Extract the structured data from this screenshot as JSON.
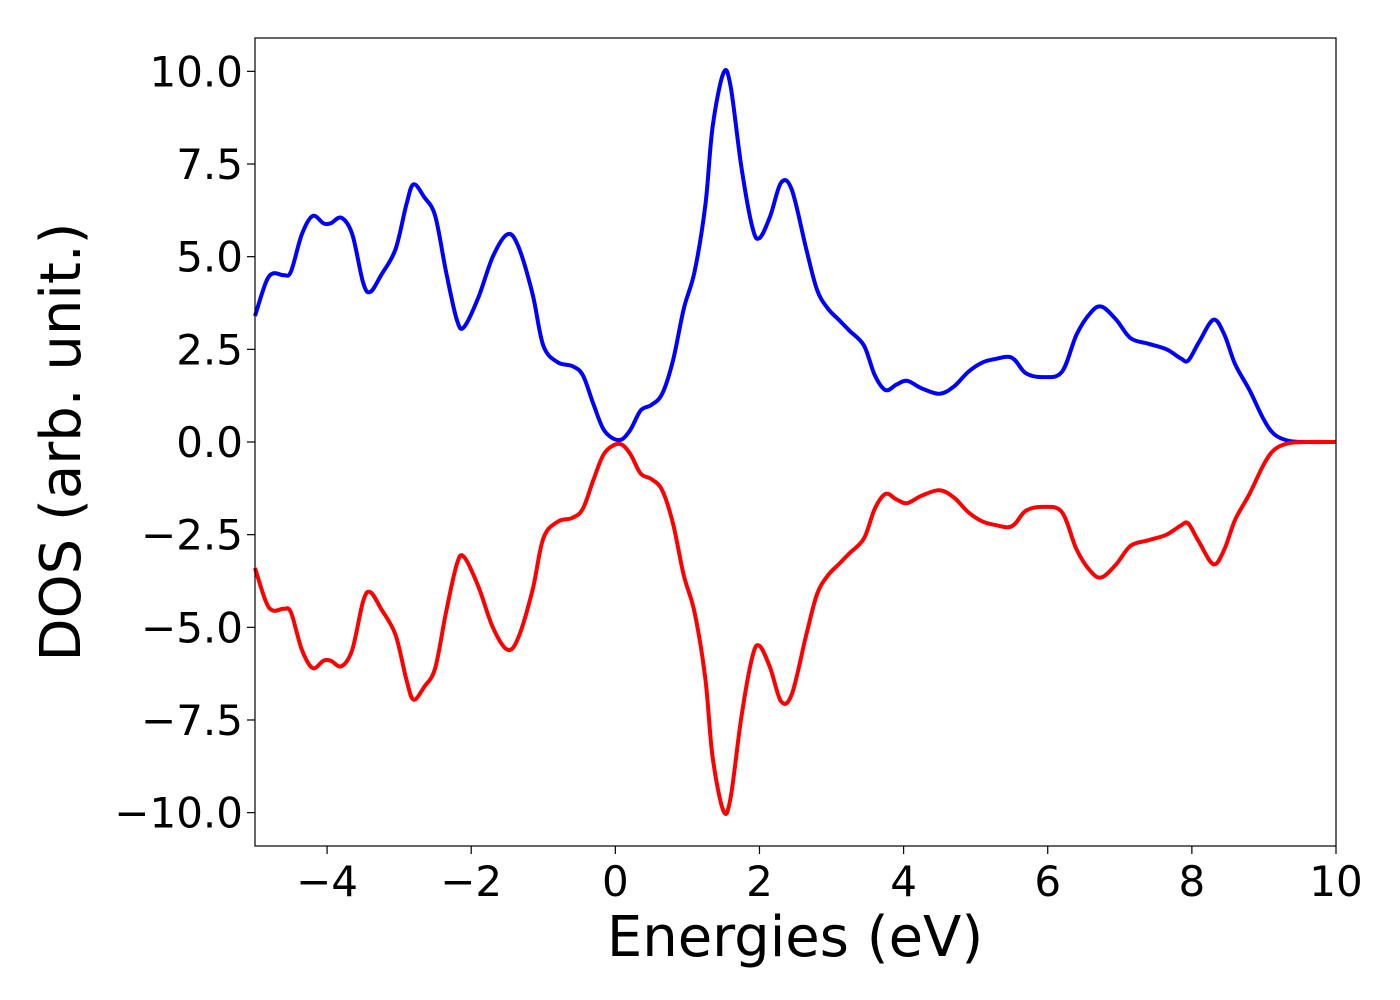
{
  "chart_data": {
    "type": "line",
    "title": "",
    "xlabel": "Energies (eV)",
    "ylabel": "DOS (arb. unit.)",
    "xlim": [
      -5,
      10
    ],
    "ylim": [
      -10.9,
      10.9
    ],
    "x_ticks": [
      -4,
      -2,
      0,
      2,
      4,
      6,
      8,
      10
    ],
    "x_tick_labels": [
      "−4",
      "−2",
      "0",
      "2",
      "4",
      "6",
      "8",
      "10"
    ],
    "y_ticks": [
      10,
      7.5,
      5,
      2.5,
      0,
      -2.5,
      -5,
      -7.5,
      -10
    ],
    "y_tick_labels": [
      "10.0",
      "7.5",
      "5.0",
      "2.5",
      "0.0",
      "−2.5",
      "−5.0",
      "−7.5",
      "−10.0"
    ],
    "grid": false,
    "legend": "none",
    "series": [
      {
        "color": "#0000ff",
        "points": [
          [
            -5,
            3.4
          ],
          [
            -4.85,
            4.3
          ],
          [
            -4.75,
            4.55
          ],
          [
            -4.6,
            4.5
          ],
          [
            -4.5,
            4.6
          ],
          [
            -4.35,
            5.6
          ],
          [
            -4.2,
            6.1
          ],
          [
            -4.05,
            5.9
          ],
          [
            -3.95,
            5.9
          ],
          [
            -3.8,
            6.05
          ],
          [
            -3.65,
            5.6
          ],
          [
            -3.5,
            4.3
          ],
          [
            -3.4,
            4.05
          ],
          [
            -3.25,
            4.5
          ],
          [
            -3.05,
            5.2
          ],
          [
            -2.9,
            6.4
          ],
          [
            -2.8,
            6.95
          ],
          [
            -2.65,
            6.6
          ],
          [
            -2.5,
            6.1
          ],
          [
            -2.35,
            4.6
          ],
          [
            -2.2,
            3.3
          ],
          [
            -2.1,
            3.1
          ],
          [
            -1.9,
            3.9
          ],
          [
            -1.7,
            5.0
          ],
          [
            -1.5,
            5.6
          ],
          [
            -1.35,
            5.3
          ],
          [
            -1.15,
            4.0
          ],
          [
            -1.0,
            2.6
          ],
          [
            -0.8,
            2.15
          ],
          [
            -0.6,
            2.05
          ],
          [
            -0.45,
            1.8
          ],
          [
            -0.3,
            1.0
          ],
          [
            -0.15,
            0.3
          ],
          [
            0.05,
            0.05
          ],
          [
            0.2,
            0.3
          ],
          [
            0.35,
            0.85
          ],
          [
            0.5,
            1.0
          ],
          [
            0.65,
            1.3
          ],
          [
            0.8,
            2.2
          ],
          [
            0.95,
            3.6
          ],
          [
            1.1,
            4.6
          ],
          [
            1.25,
            6.4
          ],
          [
            1.35,
            8.5
          ],
          [
            1.5,
            9.95
          ],
          [
            1.6,
            9.6
          ],
          [
            1.75,
            7.4
          ],
          [
            1.9,
            5.8
          ],
          [
            2.0,
            5.5
          ],
          [
            2.15,
            6.1
          ],
          [
            2.3,
            7.0
          ],
          [
            2.45,
            6.8
          ],
          [
            2.65,
            5.2
          ],
          [
            2.8,
            4.1
          ],
          [
            2.95,
            3.6
          ],
          [
            3.1,
            3.3
          ],
          [
            3.25,
            3.0
          ],
          [
            3.45,
            2.6
          ],
          [
            3.6,
            1.8
          ],
          [
            3.75,
            1.4
          ],
          [
            3.9,
            1.55
          ],
          [
            4.05,
            1.65
          ],
          [
            4.25,
            1.45
          ],
          [
            4.5,
            1.3
          ],
          [
            4.7,
            1.5
          ],
          [
            4.9,
            1.9
          ],
          [
            5.1,
            2.15
          ],
          [
            5.3,
            2.25
          ],
          [
            5.45,
            2.3
          ],
          [
            5.55,
            2.2
          ],
          [
            5.7,
            1.85
          ],
          [
            5.95,
            1.75
          ],
          [
            6.2,
            1.9
          ],
          [
            6.4,
            2.9
          ],
          [
            6.6,
            3.5
          ],
          [
            6.75,
            3.65
          ],
          [
            6.95,
            3.3
          ],
          [
            7.15,
            2.8
          ],
          [
            7.4,
            2.65
          ],
          [
            7.65,
            2.5
          ],
          [
            7.85,
            2.25
          ],
          [
            7.95,
            2.2
          ],
          [
            8.1,
            2.7
          ],
          [
            8.3,
            3.3
          ],
          [
            8.45,
            2.9
          ],
          [
            8.6,
            2.1
          ],
          [
            8.8,
            1.4
          ],
          [
            9.0,
            0.6
          ],
          [
            9.15,
            0.2
          ],
          [
            9.35,
            0.03
          ],
          [
            9.6,
            0
          ],
          [
            10,
            0
          ]
        ]
      },
      {
        "color": "#ff0000",
        "points": [
          [
            -5,
            -3.4
          ],
          [
            -4.85,
            -4.3
          ],
          [
            -4.75,
            -4.55
          ],
          [
            -4.6,
            -4.5
          ],
          [
            -4.5,
            -4.6
          ],
          [
            -4.35,
            -5.6
          ],
          [
            -4.2,
            -6.1
          ],
          [
            -4.05,
            -5.9
          ],
          [
            -3.95,
            -5.9
          ],
          [
            -3.8,
            -6.05
          ],
          [
            -3.65,
            -5.6
          ],
          [
            -3.5,
            -4.3
          ],
          [
            -3.4,
            -4.05
          ],
          [
            -3.25,
            -4.5
          ],
          [
            -3.05,
            -5.2
          ],
          [
            -2.9,
            -6.4
          ],
          [
            -2.8,
            -6.95
          ],
          [
            -2.65,
            -6.6
          ],
          [
            -2.5,
            -6.1
          ],
          [
            -2.35,
            -4.6
          ],
          [
            -2.2,
            -3.3
          ],
          [
            -2.1,
            -3.1
          ],
          [
            -1.9,
            -3.9
          ],
          [
            -1.7,
            -5.0
          ],
          [
            -1.5,
            -5.6
          ],
          [
            -1.35,
            -5.3
          ],
          [
            -1.15,
            -4.0
          ],
          [
            -1.0,
            -2.6
          ],
          [
            -0.8,
            -2.15
          ],
          [
            -0.6,
            -2.05
          ],
          [
            -0.45,
            -1.8
          ],
          [
            -0.3,
            -1.0
          ],
          [
            -0.15,
            -0.3
          ],
          [
            0.05,
            -0.05
          ],
          [
            0.2,
            -0.3
          ],
          [
            0.35,
            -0.85
          ],
          [
            0.5,
            -1.0
          ],
          [
            0.65,
            -1.3
          ],
          [
            0.8,
            -2.2
          ],
          [
            0.95,
            -3.6
          ],
          [
            1.1,
            -4.6
          ],
          [
            1.25,
            -6.4
          ],
          [
            1.35,
            -8.5
          ],
          [
            1.5,
            -9.95
          ],
          [
            1.6,
            -9.6
          ],
          [
            1.75,
            -7.4
          ],
          [
            1.9,
            -5.8
          ],
          [
            2.0,
            -5.5
          ],
          [
            2.15,
            -6.1
          ],
          [
            2.3,
            -7.0
          ],
          [
            2.45,
            -6.8
          ],
          [
            2.65,
            -5.2
          ],
          [
            2.8,
            -4.1
          ],
          [
            2.95,
            -3.6
          ],
          [
            3.1,
            -3.3
          ],
          [
            3.25,
            -3.0
          ],
          [
            3.45,
            -2.6
          ],
          [
            3.6,
            -1.8
          ],
          [
            3.75,
            -1.4
          ],
          [
            3.9,
            -1.55
          ],
          [
            4.05,
            -1.65
          ],
          [
            4.25,
            -1.45
          ],
          [
            4.5,
            -1.3
          ],
          [
            4.7,
            -1.5
          ],
          [
            4.9,
            -1.9
          ],
          [
            5.1,
            -2.15
          ],
          [
            5.3,
            -2.25
          ],
          [
            5.45,
            -2.3
          ],
          [
            5.55,
            -2.2
          ],
          [
            5.7,
            -1.85
          ],
          [
            5.95,
            -1.75
          ],
          [
            6.2,
            -1.9
          ],
          [
            6.4,
            -2.9
          ],
          [
            6.6,
            -3.5
          ],
          [
            6.75,
            -3.65
          ],
          [
            6.95,
            -3.3
          ],
          [
            7.15,
            -2.8
          ],
          [
            7.4,
            -2.65
          ],
          [
            7.65,
            -2.5
          ],
          [
            7.85,
            -2.25
          ],
          [
            7.95,
            -2.2
          ],
          [
            8.1,
            -2.7
          ],
          [
            8.3,
            -3.3
          ],
          [
            8.45,
            -2.9
          ],
          [
            8.6,
            -2.1
          ],
          [
            8.8,
            -1.4
          ],
          [
            9.0,
            -0.6
          ],
          [
            9.15,
            -0.2
          ],
          [
            9.35,
            -0.03
          ],
          [
            9.6,
            0
          ],
          [
            10,
            0
          ]
        ]
      }
    ]
  }
}
